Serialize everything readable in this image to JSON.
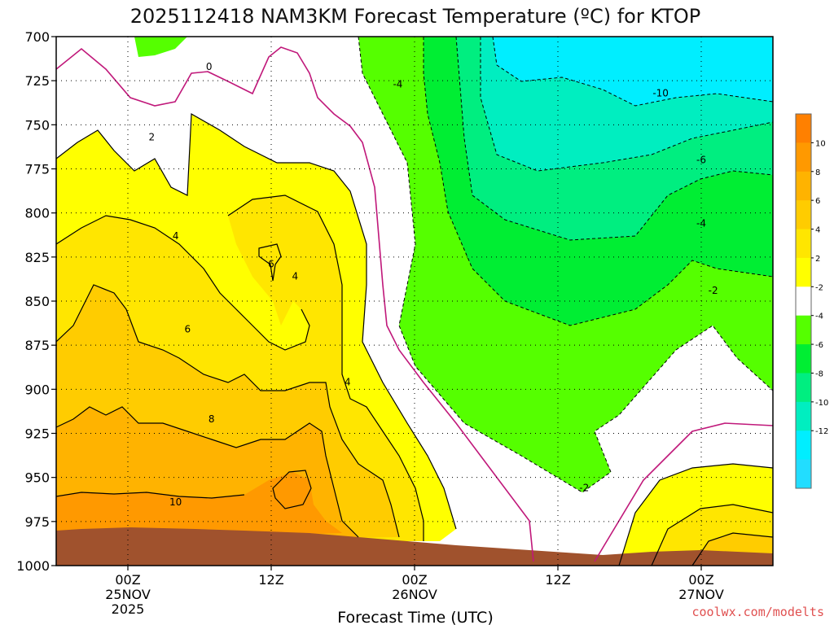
{
  "chart_data": {
    "type": "contour",
    "title": "2025112418 NAM3KM Forecast Temperature (ºC) for KTOP",
    "xlabel": "Forecast Time (UTC)",
    "credit": "coolwx.com/modelts",
    "y_axis": {
      "unit": "hPa",
      "inverted": true,
      "range": [
        1000,
        700
      ],
      "ticks": [
        700,
        725,
        750,
        775,
        800,
        825,
        850,
        875,
        900,
        925,
        950,
        975,
        1000
      ]
    },
    "x_axis": {
      "range_hours": [
        -3,
        27
      ],
      "ticks": [
        {
          "hour": 0,
          "label1": "00Z",
          "label2": "25NOV",
          "label3": "2025"
        },
        {
          "hour": 6,
          "label1": "12Z",
          "label2": "",
          "label3": ""
        },
        {
          "hour": 12,
          "label1": "00Z",
          "label2": "26NOV",
          "label3": ""
        },
        {
          "hour": 18,
          "label1": "12Z",
          "label2": "",
          "label3": ""
        },
        {
          "hour": 24,
          "label1": "00Z",
          "label2": "27NOV",
          "label3": ""
        }
      ]
    },
    "grid": true,
    "colorbar": {
      "placement": "right",
      "levels": [
        12,
        10,
        8,
        6,
        4,
        2,
        -2,
        -4,
        -6,
        -8,
        -10,
        -12
      ],
      "colors": [
        "#ff8000",
        "#ff9900",
        "#ffb300",
        "#ffcc00",
        "#ffe600",
        "#ffff00",
        "#ffffff",
        "#55ff00",
        "#00ee33",
        "#00ee80",
        "#00eec0",
        "#00eeff",
        "#22ddff"
      ],
      "labels": [
        "10",
        "8",
        "6",
        "4",
        "2",
        "-2",
        "-4",
        "-6",
        "-8",
        "-10",
        "-12"
      ]
    },
    "contour_labels": [
      {
        "text": "0",
        "hour": 3.4,
        "pres": 717
      },
      {
        "text": "2",
        "hour": 1.0,
        "pres": 757
      },
      {
        "text": "4",
        "hour": 2.0,
        "pres": 813
      },
      {
        "text": "6",
        "hour": 6.0,
        "pres": 829
      },
      {
        "text": "4",
        "hour": 7.0,
        "pres": 836
      },
      {
        "text": "6",
        "hour": 2.5,
        "pres": 866
      },
      {
        "text": "4",
        "hour": 9.2,
        "pres": 896
      },
      {
        "text": "8",
        "hour": 3.5,
        "pres": 917
      },
      {
        "text": "10",
        "hour": 2.0,
        "pres": 964
      },
      {
        "text": "-4",
        "hour": 11.3,
        "pres": 727
      },
      {
        "text": "-10",
        "hour": 22.3,
        "pres": 732
      },
      {
        "text": "-6",
        "hour": 24.0,
        "pres": 770
      },
      {
        "text": "-4",
        "hour": 24.0,
        "pres": 806
      },
      {
        "text": "-2",
        "hour": 24.5,
        "pres": 844
      },
      {
        "text": "-2",
        "hour": 19.1,
        "pres": 956
      }
    ],
    "regions": [
      {
        "value": 10,
        "desc": "warm near-surface layer"
      },
      {
        "value": -10,
        "desc": "cold aloft after 00Z 26NOV"
      }
    ]
  }
}
